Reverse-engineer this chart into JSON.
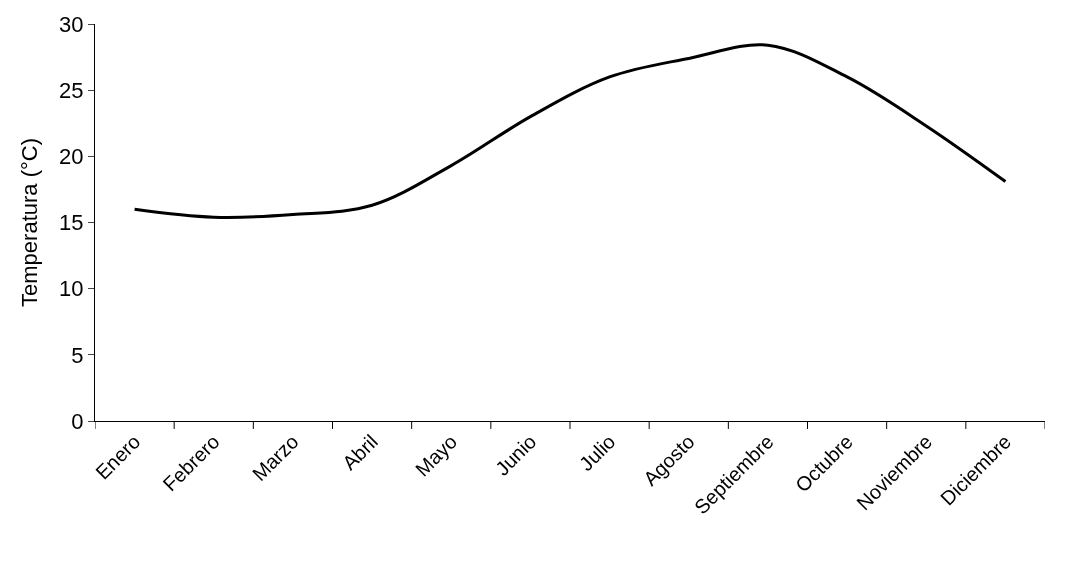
{
  "chart_data": {
    "type": "line",
    "ylabel": "Temperatura (°C)",
    "categories": [
      "Enero",
      "Febrero",
      "Marzo",
      "Abril",
      "Mayo",
      "Junio",
      "Julio",
      "Agosto",
      "Septiembre",
      "Octubre",
      "Noviembre",
      "Diciembre"
    ],
    "series": [
      {
        "color": "#000000",
        "values": [
          16.0,
          15.4,
          15.6,
          16.3,
          19.3,
          23.0,
          26.0,
          27.4,
          28.4,
          26.0,
          22.3,
          18.1
        ]
      }
    ],
    "ylim": [
      0,
      30
    ],
    "yticks": [
      0,
      5,
      10,
      15,
      20,
      25,
      30
    ],
    "legend": false,
    "marker": "none",
    "line_style": "solid"
  }
}
